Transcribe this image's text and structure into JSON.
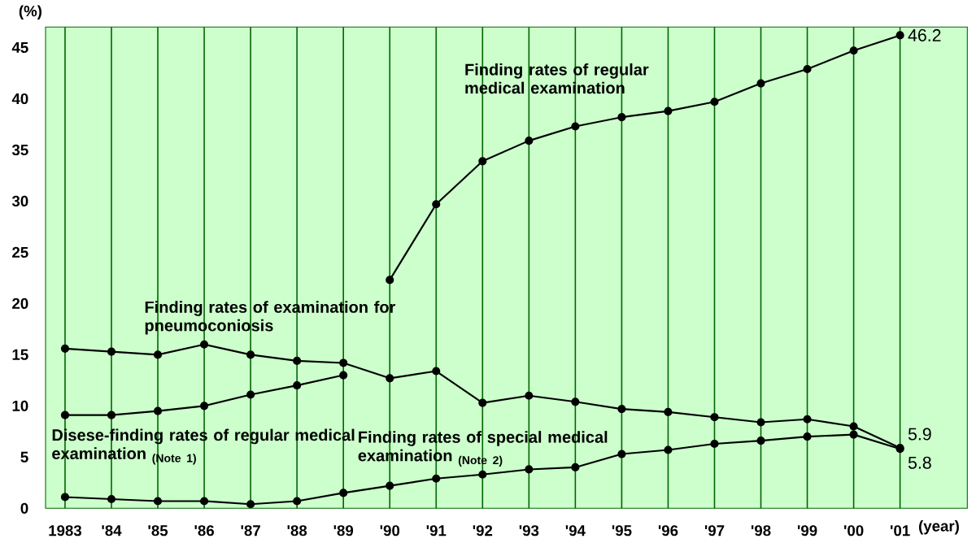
{
  "chart_data": {
    "type": "line",
    "xlabel": "(year)",
    "ylabel": "(%)",
    "categories": [
      "1983",
      "'84",
      "'85",
      "'86",
      "'87",
      "'88",
      "'89",
      "'90",
      "'91",
      "'92",
      "'93",
      "'94",
      "'95",
      "'96",
      "'97",
      "'98",
      "'99",
      "'00",
      "'01"
    ],
    "series": [
      {
        "name": "Finding rates of regular medical examination",
        "color": "#000000",
        "values": [
          null,
          null,
          null,
          null,
          null,
          null,
          null,
          22.3,
          29.7,
          33.9,
          35.9,
          37.3,
          38.2,
          38.8,
          39.7,
          41.5,
          42.9,
          44.7,
          46.2
        ],
        "value_labels": [
          null,
          null,
          null,
          null,
          null,
          null,
          null,
          null,
          null,
          null,
          null,
          null,
          null,
          null,
          null,
          null,
          null,
          null,
          "46.2"
        ]
      },
      {
        "name": "Finding rates of examination for pneumoconiosis",
        "color": "#000000",
        "values": [
          15.6,
          15.3,
          15.0,
          16.0,
          15.0,
          14.4,
          14.2,
          12.7,
          13.4,
          10.3,
          11.0,
          10.4,
          9.7,
          9.4,
          8.9,
          8.4,
          8.7,
          8.0,
          5.9
        ],
        "value_labels": [
          null,
          null,
          null,
          null,
          null,
          null,
          null,
          null,
          null,
          null,
          null,
          null,
          null,
          null,
          null,
          null,
          null,
          null,
          "5.9"
        ]
      },
      {
        "name": "Disese-finding rates of regular medical examination $_{(Note 1)}$",
        "color": "#000000",
        "values": [
          9.1,
          9.1,
          9.5,
          10.0,
          11.1,
          12.0,
          13.0,
          null,
          null,
          null,
          null,
          null,
          null,
          null,
          null,
          null,
          null,
          null,
          null
        ]
      },
      {
        "name": "Finding rates of special medical examination $_{(Note 2)}$",
        "color": "#000000",
        "values": [
          1.1,
          0.9,
          0.7,
          0.7,
          0.4,
          0.7,
          1.5,
          2.2,
          2.9,
          3.3,
          3.8,
          4.0,
          5.3,
          5.7,
          6.3,
          6.6,
          7.0,
          7.2,
          5.8
        ],
        "value_labels": [
          null,
          null,
          null,
          null,
          null,
          null,
          null,
          null,
          null,
          null,
          null,
          null,
          null,
          null,
          null,
          null,
          null,
          null,
          "5.8"
        ]
      }
    ],
    "ylim": [
      0,
      47
    ],
    "yticks": [
      0,
      5,
      10,
      15,
      20,
      25,
      30,
      35,
      40,
      45
    ],
    "grid": "x",
    "marker": "circle",
    "line_style": "solid"
  }
}
